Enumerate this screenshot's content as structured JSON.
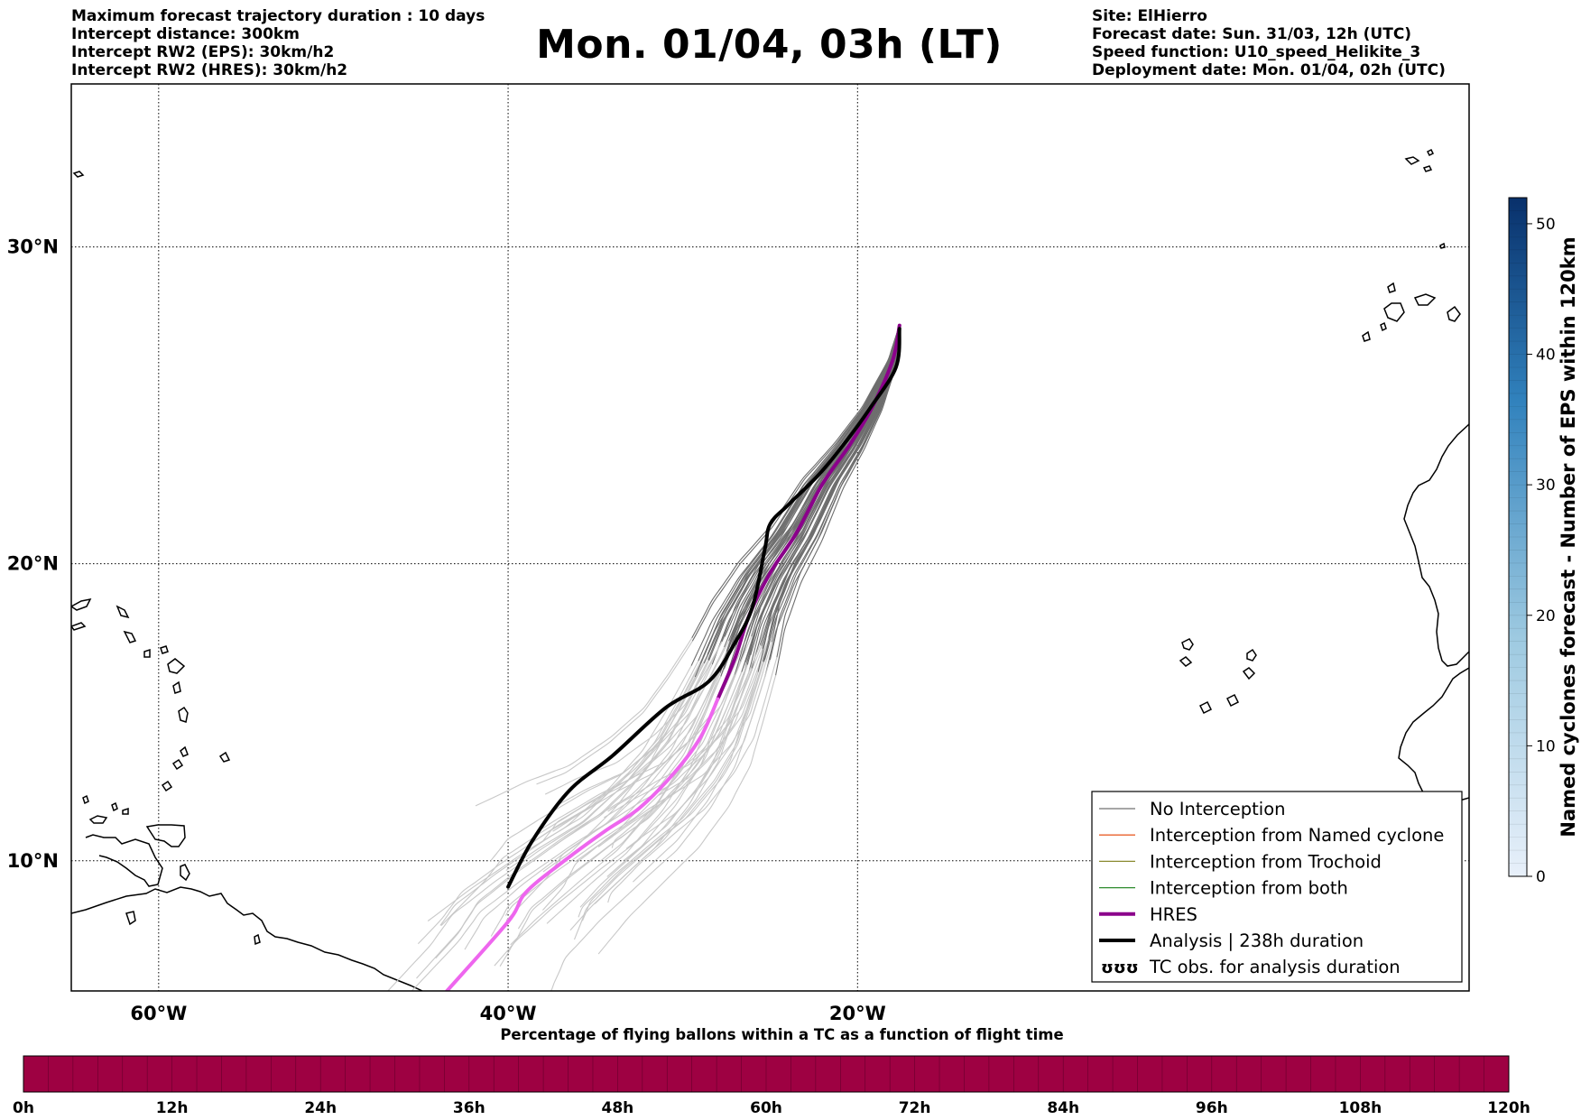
{
  "header_left": [
    "Maximum forecast trajectory duration : 10 days",
    "Intercept distance: 300km",
    "Intercept RW2 (EPS):  30km/h2",
    "Intercept RW2 (HRES): 30km/h2"
  ],
  "header_right": [
    "Site: ElHierro",
    "Forecast date: Sun. 31/03, 12h (UTC)",
    "Speed function: U10_speed_Helikite_3",
    "Deployment date: Mon. 01/04, 02h (UTC)"
  ],
  "title": "Mon. 01/04, 03h (LT)",
  "map": {
    "lon_range": [
      -65,
      15
    ],
    "lat_range": [
      5.5,
      34.8
    ],
    "lat_ticks": [
      {
        "value": 30,
        "label": "30°N"
      },
      {
        "value": 20,
        "label": "20°N"
      },
      {
        "value": 10,
        "label": "10°N"
      }
    ],
    "lon_ticks": [
      {
        "value": -60,
        "label": "60°W"
      },
      {
        "value": -40,
        "label": "40°W"
      },
      {
        "value": -20,
        "label": "20°W"
      }
    ],
    "gridlines": true
  },
  "legend": {
    "position": "lower-right",
    "items": [
      {
        "label": "No Interception",
        "color": "#707070",
        "style": "thin"
      },
      {
        "label": "Interception from Named cyclone",
        "color": "#e8602c",
        "style": "thin"
      },
      {
        "label": "Interception from Trochoid",
        "color": "#8a8a30",
        "style": "thin"
      },
      {
        "label": "Interception from both",
        "color": "#2e8b2e",
        "style": "thin"
      },
      {
        "label": "HRES",
        "color": "#8b008b",
        "style": "thick"
      },
      {
        "label": "Analysis | 238h duration",
        "color": "#000000",
        "style": "thick"
      },
      {
        "label": "TC obs. for analysis duration",
        "color": "#000000",
        "style": "symbol",
        "symbol": "ʊʊʊ"
      }
    ]
  },
  "colorbar_right": {
    "label": "Named cyclones forecast - Number of EPS within 120km",
    "ticks": [
      "0",
      "10",
      "20",
      "30",
      "40",
      "50"
    ],
    "range": [
      0,
      52
    ],
    "colors": [
      "#e8f0fa",
      "#08306b"
    ]
  },
  "colorbar_bottom": {
    "title": "Percentage of flying ballons within a TC as a function of flight time",
    "ticks": [
      "0h",
      "12h",
      "24h",
      "36h",
      "48h",
      "60h",
      "72h",
      "84h",
      "96h",
      "108h",
      "120h"
    ],
    "color": "#9e0142"
  },
  "colors": {
    "hres_early": "#8b008b",
    "hres_late": "#ee66ee",
    "eps_early": "#6e6e6e",
    "eps_late": "#c8c8c8",
    "analysis": "#000000"
  },
  "tracks": {
    "hres": [
      [
        -17.6,
        27.6
      ],
      [
        -18.0,
        26.5
      ],
      [
        -19.2,
        25.0
      ],
      [
        -20.5,
        23.8
      ],
      [
        -22.0,
        22.6
      ],
      [
        -23.5,
        21.0
      ],
      [
        -25.0,
        19.7
      ],
      [
        -26.2,
        18.3
      ],
      [
        -27.0,
        16.9
      ],
      [
        -28.0,
        15.5
      ],
      [
        -29.0,
        14.2
      ],
      [
        -30.5,
        13.0
      ],
      [
        -32.5,
        11.8
      ],
      [
        -34.5,
        11.0
      ],
      [
        -37.0,
        9.9
      ],
      [
        -39.0,
        8.9
      ],
      [
        -40.0,
        7.9
      ],
      [
        -43.5,
        5.5
      ]
    ],
    "analysis": [
      [
        -17.6,
        27.5
      ],
      [
        -17.8,
        26.3
      ],
      [
        -19.3,
        25.0
      ],
      [
        -20.6,
        24.0
      ],
      [
        -22.2,
        22.9
      ],
      [
        -24.0,
        21.9
      ],
      [
        -25.0,
        21.3
      ],
      [
        -25.3,
        20.5
      ],
      [
        -26.0,
        18.6
      ],
      [
        -27.0,
        17.4
      ],
      [
        -28.5,
        16.1
      ],
      [
        -31.0,
        15.2
      ],
      [
        -34.0,
        13.6
      ],
      [
        -36.5,
        12.4
      ],
      [
        -38.6,
        10.7
      ],
      [
        -40.0,
        9.1
      ]
    ]
  }
}
